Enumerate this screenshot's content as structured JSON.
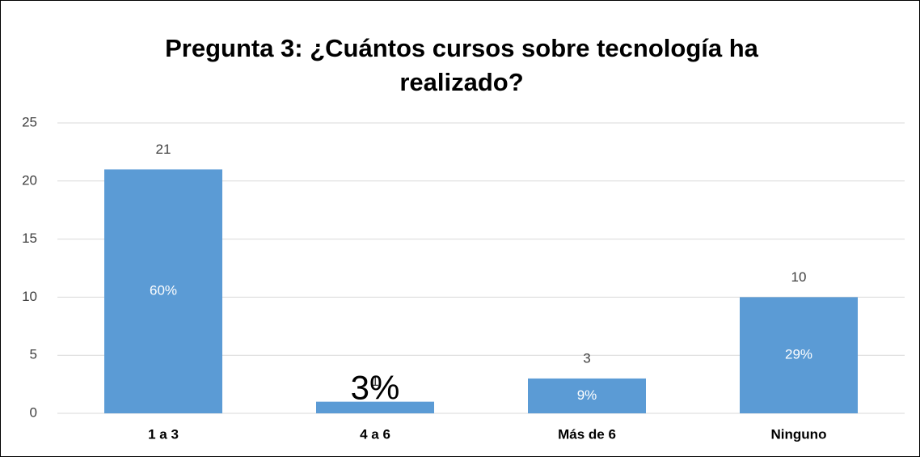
{
  "chart_data": {
    "type": "bar",
    "title": "Pregunta 3: ¿Cuántos cursos sobre tecnología ha realizado?",
    "categories": [
      "1 a 3",
      "4 a 6",
      "Más de 6",
      "Ninguno"
    ],
    "values": [
      21,
      1,
      3,
      10
    ],
    "percents": [
      60,
      3,
      9,
      29
    ],
    "percent_labels": [
      "60%",
      "3%",
      "9%",
      "29%"
    ],
    "color": "#5b9bd5",
    "ylim": [
      0,
      25
    ],
    "yticks": [
      0,
      5,
      10,
      15,
      20,
      25
    ],
    "grid": true
  }
}
